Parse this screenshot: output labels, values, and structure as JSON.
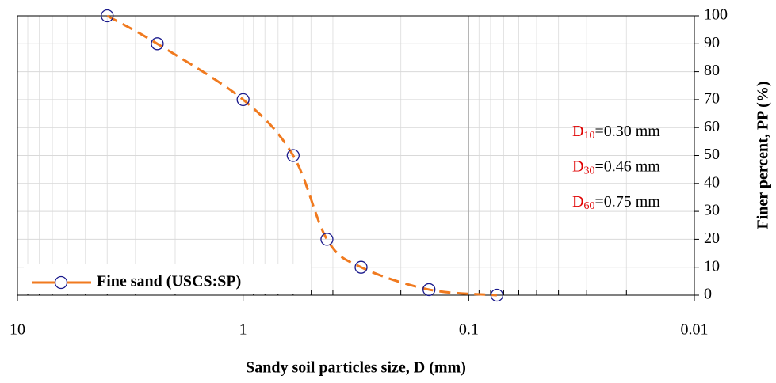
{
  "chart_data": {
    "type": "line",
    "x_label": "Sandy soil particles size, D (mm)",
    "y_label": "Finer percent, PP (%)",
    "x_scale": "log",
    "x_reversed": true,
    "xlim": [
      10,
      0.01
    ],
    "xticks": [
      10,
      1,
      0.1,
      0.01
    ],
    "ylim": [
      0,
      100
    ],
    "yticks": [
      0,
      10,
      20,
      30,
      40,
      50,
      60,
      70,
      80,
      90,
      100
    ],
    "y_axis_side": "right",
    "grid": true,
    "legend_position": "lower left",
    "series": [
      {
        "name": "Fine sand (USCS:SP)",
        "color": "#f07a1f",
        "marker_color": "#1a1a8c",
        "x": [
          4.0,
          2.4,
          1.0,
          0.6,
          0.425,
          0.3,
          0.15,
          0.075
        ],
        "values": [
          100,
          90,
          70,
          50,
          20,
          10,
          2,
          0
        ]
      }
    ],
    "annotations": [
      {
        "symbol": "D",
        "subscript": "10",
        "text": "=0.30 mm"
      },
      {
        "symbol": "D",
        "subscript": "30",
        "text": "=0.46 mm"
      },
      {
        "symbol": "D",
        "subscript": "60",
        "text": "=0.75 mm"
      }
    ]
  }
}
